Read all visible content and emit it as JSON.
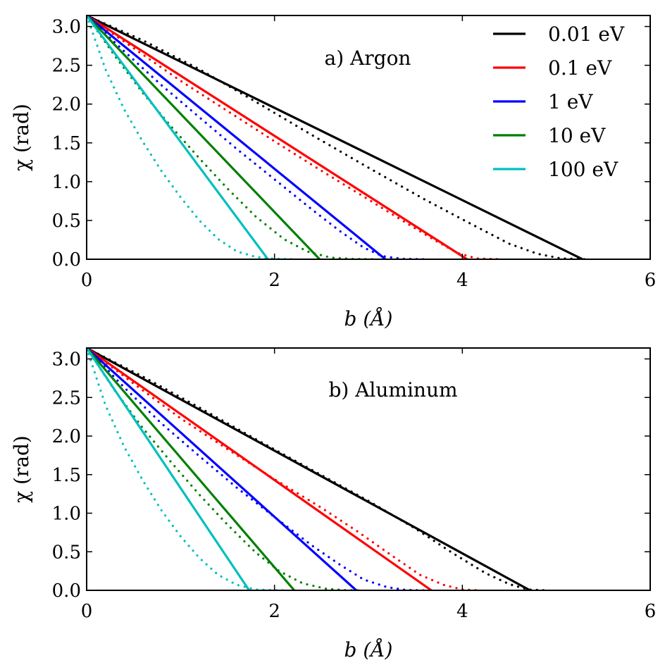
{
  "legend": {
    "entries": [
      {
        "label": "0.01 eV",
        "color": "#000000"
      },
      {
        "label": "0.1 eV",
        "color": "#ff0000"
      },
      {
        "label": "1 eV",
        "color": "#0000ff"
      },
      {
        "label": "10 eV",
        "color": "#008000"
      },
      {
        "label": "100 eV",
        "color": "#00bfbf"
      }
    ]
  },
  "chart_data": [
    {
      "type": "line",
      "title": "a) Argon",
      "xlabel": "b (Å)",
      "ylabel": "χ (rad)",
      "xlim": [
        0,
        6
      ],
      "ylim": [
        0,
        3.1416
      ],
      "xticks": [
        0,
        2,
        4,
        6
      ],
      "yticks": [
        0.0,
        0.5,
        1.0,
        1.5,
        2.0,
        2.5,
        3.0
      ],
      "xtick_labels": [
        "0",
        "2",
        "4",
        "6"
      ],
      "ytick_labels": [
        "0.0",
        "0.5",
        "1.0",
        "1.5",
        "2.0",
        "2.5",
        "3.0"
      ],
      "legend_position": "top-right",
      "series": [
        {
          "name": "0.01 eV",
          "color": "#000000",
          "solid": [
            [
              0,
              3.1416
            ],
            [
              5.28,
              0
            ]
          ],
          "dotted": [
            [
              0,
              3.1416
            ],
            [
              0.6,
              2.82
            ],
            [
              1.2,
              2.45
            ],
            [
              1.8,
              2.03
            ],
            [
              2.4,
              1.6
            ],
            [
              3.0,
              1.18
            ],
            [
              3.6,
              0.77
            ],
            [
              4.1,
              0.45
            ],
            [
              4.5,
              0.2
            ],
            [
              4.8,
              0.07
            ],
            [
              5.05,
              0.01
            ],
            [
              5.3,
              0
            ]
          ]
        },
        {
          "name": "0.1 eV",
          "color": "#ff0000",
          "solid": [
            [
              0,
              3.1416
            ],
            [
              4.05,
              0
            ]
          ],
          "dotted": [
            [
              0,
              3.1416
            ],
            [
              0.5,
              2.72
            ],
            [
              1.0,
              2.3
            ],
            [
              1.5,
              1.91
            ],
            [
              2.0,
              1.52
            ],
            [
              2.5,
              1.14
            ],
            [
              3.0,
              0.77
            ],
            [
              3.4,
              0.47
            ],
            [
              3.7,
              0.25
            ],
            [
              3.95,
              0.08
            ],
            [
              4.15,
              0.01
            ],
            [
              4.4,
              0
            ]
          ]
        },
        {
          "name": "1 eV",
          "color": "#0000ff",
          "solid": [
            [
              0,
              3.1416
            ],
            [
              3.18,
              0
            ]
          ],
          "dotted": [
            [
              0,
              3.1416
            ],
            [
              0.4,
              2.68
            ],
            [
              0.8,
              2.24
            ],
            [
              1.2,
              1.83
            ],
            [
              1.6,
              1.42
            ],
            [
              2.0,
              1.03
            ],
            [
              2.4,
              0.64
            ],
            [
              2.7,
              0.36
            ],
            [
              2.95,
              0.15
            ],
            [
              3.15,
              0.04
            ],
            [
              3.35,
              0.005
            ],
            [
              3.6,
              0
            ]
          ]
        },
        {
          "name": "10 eV",
          "color": "#008000",
          "solid": [
            [
              0,
              3.1416
            ],
            [
              2.48,
              0
            ]
          ],
          "dotted": [
            [
              0,
              3.1416
            ],
            [
              0.3,
              2.62
            ],
            [
              0.6,
              2.14
            ],
            [
              0.9,
              1.71
            ],
            [
              1.2,
              1.3
            ],
            [
              1.5,
              0.91
            ],
            [
              1.8,
              0.55
            ],
            [
              2.1,
              0.26
            ],
            [
              2.35,
              0.1
            ],
            [
              2.6,
              0.02
            ],
            [
              2.85,
              0.003
            ],
            [
              3.1,
              0
            ]
          ]
        },
        {
          "name": "100 eV",
          "color": "#00bfbf",
          "solid": [
            [
              0,
              3.1416
            ],
            [
              1.93,
              0
            ]
          ],
          "dotted": [
            [
              0,
              3.1416
            ],
            [
              0.2,
              2.45
            ],
            [
              0.4,
              1.93
            ],
            [
              0.6,
              1.51
            ],
            [
              0.8,
              1.13
            ],
            [
              1.0,
              0.8
            ],
            [
              1.2,
              0.5
            ],
            [
              1.4,
              0.26
            ],
            [
              1.6,
              0.1
            ],
            [
              1.8,
              0.03
            ],
            [
              2.0,
              0.005
            ],
            [
              2.2,
              0
            ]
          ]
        }
      ]
    },
    {
      "type": "line",
      "title": "b) Aluminum",
      "xlabel": "b (Å)",
      "ylabel": "χ (rad)",
      "xlim": [
        0,
        6
      ],
      "ylim": [
        0,
        3.1416
      ],
      "xticks": [
        0,
        2,
        4,
        6
      ],
      "yticks": [
        0.0,
        0.5,
        1.0,
        1.5,
        2.0,
        2.5,
        3.0
      ],
      "xtick_labels": [
        "0",
        "2",
        "4",
        "6"
      ],
      "ytick_labels": [
        "0.0",
        "0.5",
        "1.0",
        "1.5",
        "2.0",
        "2.5",
        "3.0"
      ],
      "series": [
        {
          "name": "0.01 eV",
          "color": "#000000",
          "solid": [
            [
              0,
              3.1416
            ],
            [
              4.72,
              0
            ]
          ],
          "dotted": [
            [
              0,
              3.1416
            ],
            [
              0.6,
              2.77
            ],
            [
              1.2,
              2.37
            ],
            [
              1.8,
              1.96
            ],
            [
              2.4,
              1.56
            ],
            [
              3.0,
              1.16
            ],
            [
              3.5,
              0.8
            ],
            [
              3.9,
              0.48
            ],
            [
              4.25,
              0.22
            ],
            [
              4.5,
              0.08
            ],
            [
              4.7,
              0.01
            ],
            [
              4.9,
              0
            ]
          ]
        },
        {
          "name": "0.1 eV",
          "color": "#ff0000",
          "solid": [
            [
              0,
              3.1416
            ],
            [
              3.67,
              0
            ]
          ],
          "dotted": [
            [
              0,
              3.1416
            ],
            [
              0.5,
              2.68
            ],
            [
              1.0,
              2.23
            ],
            [
              1.5,
              1.83
            ],
            [
              2.0,
              1.44
            ],
            [
              2.5,
              1.07
            ],
            [
              2.9,
              0.75
            ],
            [
              3.25,
              0.45
            ],
            [
              3.55,
              0.2
            ],
            [
              3.8,
              0.07
            ],
            [
              4.0,
              0.01
            ],
            [
              4.2,
              0
            ]
          ]
        },
        {
          "name": "1 eV",
          "color": "#0000ff",
          "solid": [
            [
              0,
              3.1416
            ],
            [
              2.87,
              0
            ]
          ],
          "dotted": [
            [
              0,
              3.1416
            ],
            [
              0.4,
              2.63
            ],
            [
              0.8,
              2.16
            ],
            [
              1.2,
              1.74
            ],
            [
              1.6,
              1.33
            ],
            [
              2.0,
              0.95
            ],
            [
              2.4,
              0.58
            ],
            [
              2.7,
              0.33
            ],
            [
              2.95,
              0.14
            ],
            [
              3.2,
              0.04
            ],
            [
              3.4,
              0.005
            ],
            [
              3.6,
              0
            ]
          ]
        },
        {
          "name": "10 eV",
          "color": "#008000",
          "solid": [
            [
              0,
              3.1416
            ],
            [
              2.21,
              0
            ]
          ],
          "dotted": [
            [
              0,
              3.1416
            ],
            [
              0.3,
              2.59
            ],
            [
              0.6,
              2.1
            ],
            [
              0.9,
              1.66
            ],
            [
              1.2,
              1.24
            ],
            [
              1.5,
              0.85
            ],
            [
              1.8,
              0.49
            ],
            [
              2.05,
              0.25
            ],
            [
              2.3,
              0.09
            ],
            [
              2.55,
              0.02
            ],
            [
              2.75,
              0.003
            ],
            [
              2.9,
              0
            ]
          ]
        },
        {
          "name": "100 eV",
          "color": "#00bfbf",
          "solid": [
            [
              0,
              3.1416
            ],
            [
              1.73,
              0
            ]
          ],
          "dotted": [
            [
              0,
              3.1416
            ],
            [
              0.2,
              2.4
            ],
            [
              0.4,
              1.86
            ],
            [
              0.6,
              1.42
            ],
            [
              0.8,
              1.03
            ],
            [
              1.0,
              0.7
            ],
            [
              1.2,
              0.42
            ],
            [
              1.4,
              0.2
            ],
            [
              1.6,
              0.07
            ],
            [
              1.8,
              0.01
            ],
            [
              2.0,
              0.002
            ],
            [
              2.1,
              0
            ]
          ]
        }
      ]
    }
  ]
}
